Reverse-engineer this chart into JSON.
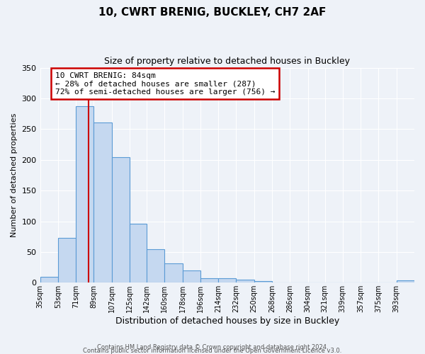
{
  "title": "10, CWRT BRENIG, BUCKLEY, CH7 2AF",
  "subtitle": "Size of property relative to detached houses in Buckley",
  "xlabel": "Distribution of detached houses by size in Buckley",
  "ylabel": "Number of detached properties",
  "bar_values": [
    9,
    73,
    287,
    261,
    204,
    96,
    54,
    31,
    20,
    7,
    7,
    5,
    3,
    0,
    0,
    0,
    0,
    0,
    0,
    0,
    4
  ],
  "bar_labels": [
    "35sqm",
    "53sqm",
    "71sqm",
    "89sqm",
    "107sqm",
    "125sqm",
    "142sqm",
    "160sqm",
    "178sqm",
    "196sqm",
    "214sqm",
    "232sqm",
    "250sqm",
    "268sqm",
    "286sqm",
    "304sqm",
    "321sqm",
    "339sqm",
    "357sqm",
    "375sqm",
    "393sqm"
  ],
  "bin_edges": [
    35,
    53,
    71,
    89,
    107,
    125,
    142,
    160,
    178,
    196,
    214,
    232,
    250,
    268,
    286,
    304,
    321,
    339,
    357,
    375,
    393,
    411
  ],
  "bar_color": "#c5d8f0",
  "bar_edge_color": "#5b9bd5",
  "property_line_x": 84,
  "annotation_title": "10 CWRT BRENIG: 84sqm",
  "annotation_line1": "← 28% of detached houses are smaller (287)",
  "annotation_line2": "72% of semi-detached houses are larger (756) →",
  "annotation_box_color": "#ffffff",
  "annotation_box_edge": "#cc0000",
  "vline_color": "#cc0000",
  "ylim": [
    0,
    350
  ],
  "yticks": [
    0,
    50,
    100,
    150,
    200,
    250,
    300,
    350
  ],
  "background_color": "#eef2f8",
  "footer1": "Contains HM Land Registry data © Crown copyright and database right 2024.",
  "footer2": "Contains public sector information licensed under the Open Government Licence v3.0."
}
